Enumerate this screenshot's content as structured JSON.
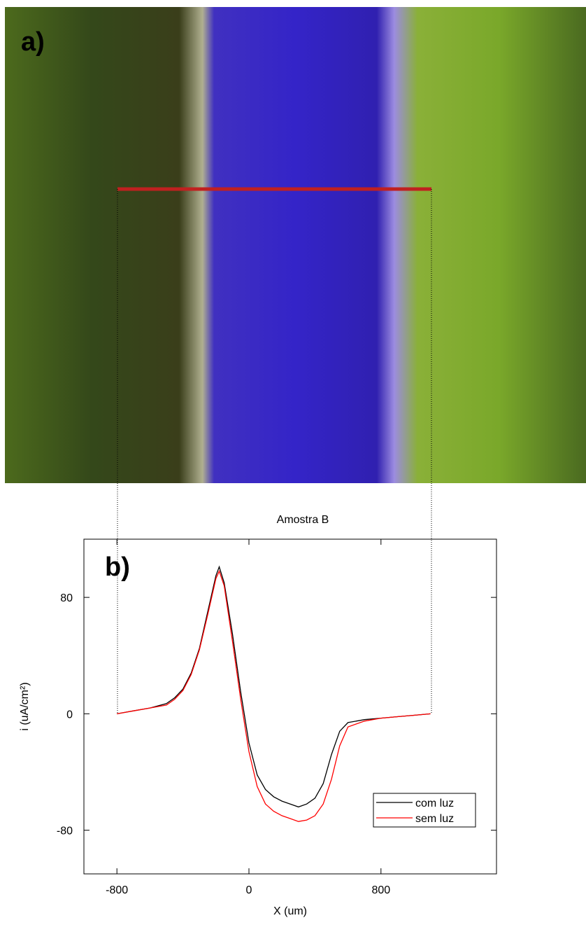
{
  "panel_labels": [
    "a)",
    "b)"
  ],
  "chart_data": {
    "type": "line",
    "title": "Amostra B",
    "x_label": "X (um)",
    "y_label": "i (uA/cm²)",
    "x": [
      -800,
      -700,
      -600,
      -500,
      -450,
      -400,
      -350,
      -300,
      -250,
      -200,
      -180,
      -150,
      -100,
      -50,
      0,
      50,
      100,
      150,
      200,
      250,
      300,
      350,
      400,
      450,
      500,
      550,
      600,
      700,
      800,
      900,
      1000,
      1100
    ],
    "series": [
      {
        "name": "com luz",
        "color": "#000000",
        "values": [
          0,
          2,
          4,
          7,
          11,
          17,
          28,
          45,
          70,
          95,
          101,
          90,
          55,
          15,
          -20,
          -42,
          -52,
          -57,
          -60,
          -62,
          -64,
          -62,
          -58,
          -48,
          -28,
          -12,
          -6,
          -4,
          -3,
          -2,
          -1,
          0
        ]
      },
      {
        "name": "sem luz",
        "color": "#ff0000",
        "values": [
          0,
          2,
          4,
          6,
          10,
          16,
          27,
          44,
          68,
          93,
          98,
          88,
          50,
          10,
          -26,
          -50,
          -62,
          -67,
          -70,
          -72,
          -74,
          -73,
          -70,
          -62,
          -45,
          -22,
          -9,
          -5,
          -3,
          -2,
          -1,
          0
        ]
      }
    ],
    "xlim": [
      -1000,
      1500
    ],
    "xticks": [
      -800,
      0,
      800
    ],
    "ylim": [
      -110,
      120
    ],
    "yticks": [
      -80,
      0,
      80
    ],
    "legend": "lower right",
    "grid": false
  }
}
